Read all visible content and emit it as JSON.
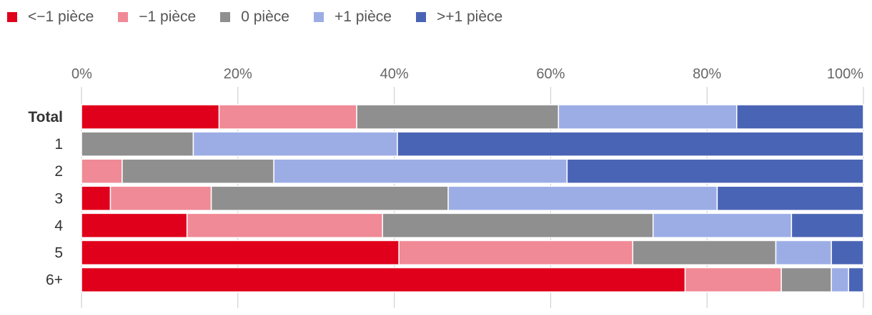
{
  "chart_data": {
    "type": "bar",
    "orientation": "horizontal",
    "stacked": true,
    "normalized": true,
    "xlim": [
      0,
      100
    ],
    "x_ticks": [
      "0%",
      "20%",
      "40%",
      "60%",
      "80%",
      "100%"
    ],
    "x_tick_values": [
      0,
      20,
      40,
      60,
      80,
      100
    ],
    "legend_position": "top-left",
    "grid": "vertical",
    "categories": [
      "Total",
      "1",
      "2",
      "3",
      "4",
      "5",
      "6+"
    ],
    "bold_categories": [
      "Total"
    ],
    "series": [
      {
        "name": "<−1 pièce",
        "color": "#E0001B",
        "values": [
          17.6,
          0,
          0,
          3.7,
          13.5,
          40.6,
          77.2
        ]
      },
      {
        "name": "−1 pièce",
        "color": "#F08A96",
        "values": [
          17.6,
          0,
          5.2,
          12.9,
          25.0,
          29.9,
          12.3
        ]
      },
      {
        "name": "0 pièce",
        "color": "#8F8F8F",
        "values": [
          25.8,
          14.3,
          19.4,
          30.3,
          34.6,
          18.3,
          6.4
        ]
      },
      {
        "name": "+1 pièce",
        "color": "#9CADE6",
        "values": [
          22.8,
          26.1,
          37.5,
          34.4,
          17.7,
          7.1,
          2.2
        ]
      },
      {
        "name": ">+1 pièce",
        "color": "#4A64B5",
        "values": [
          16.2,
          59.6,
          37.9,
          18.7,
          9.2,
          4.1,
          1.9
        ]
      }
    ]
  }
}
